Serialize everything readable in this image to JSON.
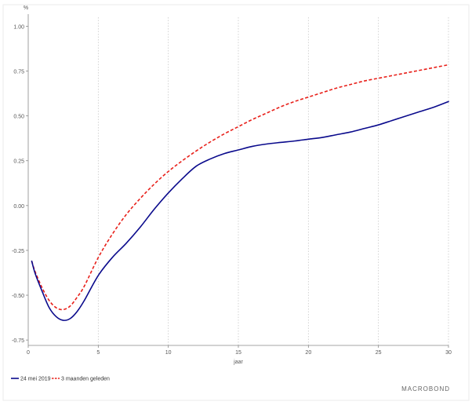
{
  "chart_data": {
    "type": "line",
    "title": "",
    "xlabel": "jaar",
    "ylabel": "%",
    "xlim": [
      0,
      30
    ],
    "ylim": [
      -0.78,
      1.05
    ],
    "x_ticks": [
      0,
      5,
      10,
      15,
      20,
      25,
      30
    ],
    "x_tick_labels": [
      "0",
      "5",
      "10",
      "15",
      "20",
      "25",
      "30"
    ],
    "y_ticks": [
      1.0,
      0.75,
      0.5,
      0.25,
      0.0,
      -0.25,
      -0.5,
      -0.75
    ],
    "y_tick_labels": [
      "1.00",
      "0.75",
      "0.50",
      "0.25",
      "0.00",
      "-0.25",
      "-0.50",
      "-0.75"
    ],
    "grid": "vertical dotted",
    "legend_position": "bottom-left",
    "series": [
      {
        "name": "24 mei 2019",
        "color": "#0a0a8c",
        "line_style": "solid",
        "x": [
          0.25,
          0.5,
          1,
          1.5,
          2,
          2.5,
          3,
          3.5,
          4,
          5,
          6,
          7,
          8,
          9,
          10,
          11,
          12,
          13,
          14,
          15,
          16,
          17,
          18,
          19,
          20,
          21,
          22,
          23,
          24,
          25,
          26,
          27,
          28,
          29,
          30
        ],
        "y": [
          -0.31,
          -0.38,
          -0.48,
          -0.57,
          -0.62,
          -0.64,
          -0.63,
          -0.59,
          -0.53,
          -0.39,
          -0.29,
          -0.21,
          -0.12,
          -0.02,
          0.07,
          0.15,
          0.22,
          0.26,
          0.29,
          0.31,
          0.33,
          0.343,
          0.352,
          0.36,
          0.37,
          0.38,
          0.395,
          0.41,
          0.43,
          0.45,
          0.475,
          0.5,
          0.525,
          0.55,
          0.58
        ]
      },
      {
        "name": "3 maanden geleden",
        "color": "#e8201a",
        "line_style": "dashed",
        "x": [
          0.25,
          0.5,
          1,
          1.5,
          2,
          2.5,
          3,
          3.5,
          4,
          5,
          6,
          7,
          8,
          9,
          10,
          11,
          12,
          13,
          14,
          15,
          16,
          17,
          18,
          19,
          20,
          21,
          22,
          23,
          24,
          25,
          26,
          27,
          28,
          29,
          30
        ],
        "y": [
          -0.31,
          -0.37,
          -0.46,
          -0.53,
          -0.57,
          -0.58,
          -0.56,
          -0.51,
          -0.45,
          -0.29,
          -0.16,
          -0.05,
          0.04,
          0.12,
          0.19,
          0.25,
          0.305,
          0.355,
          0.4,
          0.44,
          0.48,
          0.515,
          0.55,
          0.58,
          0.605,
          0.63,
          0.655,
          0.675,
          0.695,
          0.71,
          0.725,
          0.74,
          0.755,
          0.77,
          0.785
        ]
      }
    ]
  },
  "branding": {
    "logo_text": "MACROBOND"
  }
}
